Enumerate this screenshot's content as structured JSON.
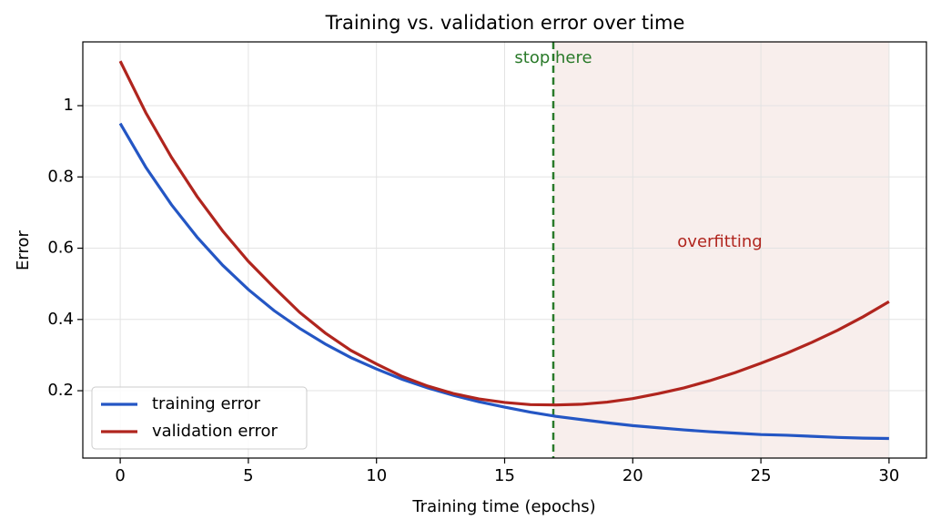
{
  "chart_data": {
    "type": "line",
    "title": "Training vs. validation error over time",
    "xlabel": "Training time (epochs)",
    "ylabel": "Error",
    "x": [
      0,
      1,
      2,
      3,
      4,
      5,
      6,
      7,
      8,
      9,
      10,
      11,
      12,
      13,
      14,
      15,
      16,
      17,
      18,
      19,
      20,
      21,
      22,
      23,
      24,
      25,
      26,
      27,
      28,
      29,
      30
    ],
    "series": [
      {
        "name": "training error",
        "color": "#2456c4",
        "values": [
          0.95,
          0.827,
          0.722,
          0.631,
          0.552,
          0.484,
          0.425,
          0.375,
          0.331,
          0.293,
          0.261,
          0.232,
          0.208,
          0.187,
          0.169,
          0.154,
          0.14,
          0.128,
          0.119,
          0.11,
          0.102,
          0.096,
          0.09,
          0.085,
          0.081,
          0.077,
          0.075,
          0.072,
          0.069,
          0.067,
          0.066
        ]
      },
      {
        "name": "validation error",
        "color": "#b0251e",
        "values": [
          1.125,
          0.98,
          0.855,
          0.745,
          0.648,
          0.563,
          0.49,
          0.42,
          0.362,
          0.313,
          0.275,
          0.24,
          0.213,
          0.192,
          0.177,
          0.167,
          0.161,
          0.16,
          0.162,
          0.168,
          0.178,
          0.192,
          0.208,
          0.228,
          0.251,
          0.277,
          0.305,
          0.336,
          0.37,
          0.408,
          0.45
        ]
      }
    ],
    "stop_x": 16.9,
    "stop_color": "#2a7a2a",
    "stop_label": "stop here",
    "overfit_span": [
      16.9,
      30
    ],
    "overfit_color": "#f8eeec",
    "overfit_label": "overfitting",
    "overfit_label_color": "#b0251e",
    "xlim": [
      -1.46,
      31.46
    ],
    "ylim": [
      0.011,
      1.179
    ],
    "xticks": [
      0,
      5,
      10,
      15,
      20,
      25,
      30
    ],
    "yticks": [
      0.2,
      0.4,
      0.6,
      0.8,
      1.0
    ],
    "grid": true,
    "legend": "lower left"
  }
}
